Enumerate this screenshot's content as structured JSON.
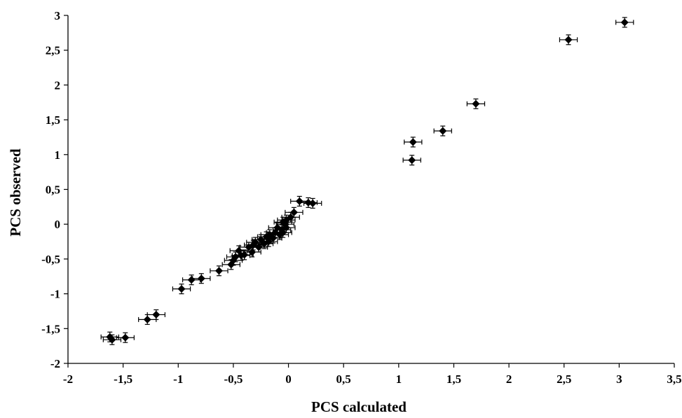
{
  "chart_data": {
    "type": "scatter",
    "title": "",
    "xlabel": "PCS calculated",
    "ylabel": "PCS observed",
    "xlim": [
      -2,
      3.5
    ],
    "ylim": [
      -2,
      3
    ],
    "x_ticks": [
      -2,
      -1.5,
      -1,
      -0.5,
      0,
      0.5,
      1,
      1.5,
      2,
      2.5,
      3,
      3.5
    ],
    "x_tick_labels": [
      "-2",
      "-1,5",
      "-1",
      "-0,5",
      "0",
      "0,5",
      "1",
      "1,5",
      "2",
      "2,5",
      "3",
      "3,5"
    ],
    "y_ticks": [
      -2,
      -1.5,
      -1,
      -0.5,
      0,
      0.5,
      1,
      1.5,
      2,
      2.5,
      3
    ],
    "y_tick_labels": [
      "-2",
      "-1,5",
      "-1",
      "-0,5",
      "0",
      "0,5",
      "1",
      "1,5",
      "2",
      "2,5",
      "3"
    ],
    "grid": false,
    "legend": "none",
    "marker": "diamond",
    "marker_color": "#000000",
    "x_error": 0.08,
    "y_error": 0.07,
    "series": [
      {
        "points": [
          {
            "x": 3.05,
            "y": 2.9
          },
          {
            "x": 2.54,
            "y": 2.65
          },
          {
            "x": 1.7,
            "y": 1.73
          },
          {
            "x": 1.4,
            "y": 1.34
          },
          {
            "x": 1.13,
            "y": 1.18
          },
          {
            "x": 1.12,
            "y": 0.92
          },
          {
            "x": 0.1,
            "y": 0.33
          },
          {
            "x": 0.18,
            "y": 0.31
          },
          {
            "x": 0.22,
            "y": 0.3
          },
          {
            "x": 0.05,
            "y": 0.17
          },
          {
            "x": 0.02,
            "y": 0.1
          },
          {
            "x": -0.02,
            "y": 0.06
          },
          {
            "x": -0.03,
            "y": 0.0
          },
          {
            "x": -0.05,
            "y": 0.03
          },
          {
            "x": -0.02,
            "y": -0.05
          },
          {
            "x": -0.06,
            "y": -0.08
          },
          {
            "x": -0.05,
            "y": -0.12
          },
          {
            "x": -0.1,
            "y": -0.05
          },
          {
            "x": -0.08,
            "y": -0.15
          },
          {
            "x": -0.12,
            "y": -0.12
          },
          {
            "x": -0.14,
            "y": -0.2
          },
          {
            "x": -0.17,
            "y": -0.15
          },
          {
            "x": -0.18,
            "y": -0.25
          },
          {
            "x": -0.2,
            "y": -0.18
          },
          {
            "x": -0.22,
            "y": -0.28
          },
          {
            "x": -0.25,
            "y": -0.22
          },
          {
            "x": -0.27,
            "y": -0.33
          },
          {
            "x": -0.3,
            "y": -0.26
          },
          {
            "x": -0.32,
            "y": -0.3
          },
          {
            "x": -0.33,
            "y": -0.4
          },
          {
            "x": -0.36,
            "y": -0.33
          },
          {
            "x": -0.4,
            "y": -0.44
          },
          {
            "x": -0.43,
            "y": -0.45
          },
          {
            "x": -0.45,
            "y": -0.38
          },
          {
            "x": -0.48,
            "y": -0.47
          },
          {
            "x": -0.5,
            "y": -0.52
          },
          {
            "x": -0.52,
            "y": -0.58
          },
          {
            "x": -0.63,
            "y": -0.67
          },
          {
            "x": -0.79,
            "y": -0.78
          },
          {
            "x": -0.88,
            "y": -0.8
          },
          {
            "x": -0.97,
            "y": -0.93
          },
          {
            "x": -1.2,
            "y": -1.3
          },
          {
            "x": -1.28,
            "y": -1.37
          },
          {
            "x": -1.48,
            "y": -1.63
          },
          {
            "x": -1.6,
            "y": -1.66
          },
          {
            "x": -1.62,
            "y": -1.62
          }
        ]
      }
    ]
  }
}
